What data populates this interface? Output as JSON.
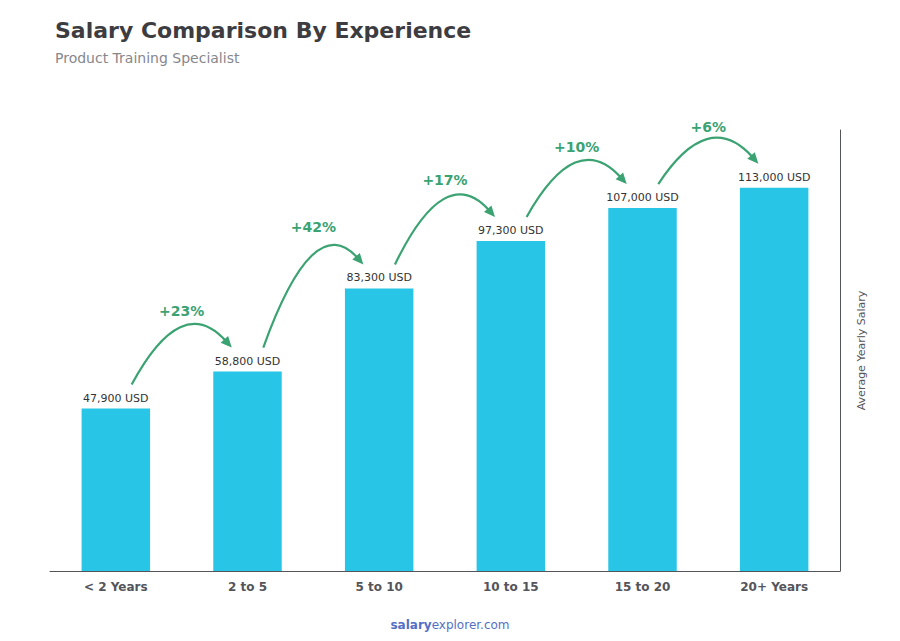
{
  "chart_data": {
    "type": "bar",
    "title": "Salary Comparison By Experience",
    "subtitle": "Product Training Specialist",
    "categories": [
      "< 2 Years",
      "2 to 5",
      "5 to 10",
      "10 to 15",
      "15 to 20",
      "20+ Years"
    ],
    "values": [
      47900,
      58800,
      83300,
      97300,
      107000,
      113000
    ],
    "value_labels": [
      "47,900 USD",
      "58,800 USD",
      "83,300 USD",
      "97,300 USD",
      "107,000 USD",
      "113,000 USD"
    ],
    "data_labels": true,
    "annotations": [
      "+23%",
      "+42%",
      "+17%",
      "+10%",
      "+6%"
    ],
    "ylabel": "Average Yearly Salary",
    "watermark": [
      "salary",
      "explorer.com"
    ],
    "color": "#29c5e6",
    "ylim": [
      0,
      130000
    ],
    "grid": false,
    "tick_labels": "x"
  }
}
